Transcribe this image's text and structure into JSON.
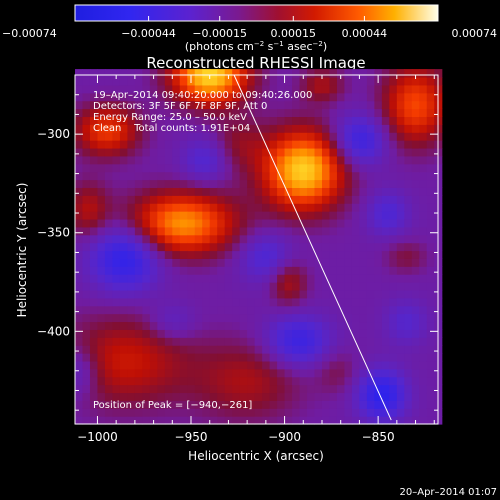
{
  "chart_data": {
    "type": "heatmap",
    "title": "Reconstructed RHESSI Image",
    "xlabel": "Heliocentric X (arcsec)",
    "ylabel": "Heliocentric Y (arcsec)",
    "xlim": [
      -1012,
      -818
    ],
    "ylim": [
      -447,
      -270
    ],
    "x_ticks": [
      -1000,
      -950,
      -900,
      -850
    ],
    "x_tick_labels": [
      "−1000",
      "−950",
      "−900",
      "−850"
    ],
    "y_ticks": [
      -300,
      -350,
      -400
    ],
    "y_tick_labels": [
      "−300",
      "−350",
      "−400"
    ],
    "colorbar": {
      "min": -0.00074,
      "max": 0.00074,
      "ticks": [
        -0.00074,
        -0.00044,
        -0.00015,
        0.00015,
        0.00044,
        0.00074
      ],
      "tick_labels": [
        "−0.00074",
        "−0.00044",
        "−0.00015",
        "0.00015",
        "0.00044",
        "0.00074"
      ],
      "units_main": "(photons cm",
      "units_exp1": "−2",
      "units_mid": " s",
      "units_exp2": "−1",
      "units_mid2": " asec",
      "units_exp3": "−2",
      "units_end": ")"
    },
    "annotations": [
      "19–Apr–2014 09:40:20.000 to 09:40:26.000",
      "Detectors: 3F 5F 6F 7F 8F 9F, Att 0",
      "Energy Range: 25.0 – 50.0 keV",
      "Clean    Total counts: 1.91E+04"
    ],
    "peak_label": "Position of Peak = [−940,−261]",
    "peak_position": [
      -940,
      -261
    ],
    "limb_line": [
      [
        -927,
        -262
      ],
      [
        -843,
        -445
      ]
    ],
    "blobs": [
      {
        "x": -940,
        "y": -270,
        "sx": 14,
        "sy": 10,
        "a": 1.0
      },
      {
        "x": -890,
        "y": -318,
        "sx": 15,
        "sy": 14,
        "a": 0.98
      },
      {
        "x": -955,
        "y": -345,
        "sx": 20,
        "sy": 11,
        "a": 0.8
      },
      {
        "x": -995,
        "y": -298,
        "sx": 12,
        "sy": 9,
        "a": 0.55
      },
      {
        "x": -830,
        "y": -285,
        "sx": 12,
        "sy": 14,
        "a": 0.6
      },
      {
        "x": -880,
        "y": -275,
        "sx": 8,
        "sy": 6,
        "a": 0.3
      },
      {
        "x": -1005,
        "y": -338,
        "sx": 8,
        "sy": 10,
        "a": 0.32
      },
      {
        "x": -925,
        "y": -305,
        "sx": 10,
        "sy": 10,
        "a": 0.22
      },
      {
        "x": -985,
        "y": -415,
        "sx": 24,
        "sy": 16,
        "a": 0.4
      },
      {
        "x": -920,
        "y": -425,
        "sx": 20,
        "sy": 14,
        "a": 0.3
      },
      {
        "x": -898,
        "y": -375,
        "sx": 7,
        "sy": 8,
        "a": 0.32
      },
      {
        "x": -835,
        "y": -362,
        "sx": 8,
        "sy": 6,
        "a": 0.18
      },
      {
        "x": -872,
        "y": -420,
        "sx": 8,
        "sy": 8,
        "a": 0.15
      },
      {
        "x": -985,
        "y": -362,
        "sx": 13,
        "sy": 12,
        "a": -0.55
      },
      {
        "x": -860,
        "y": -303,
        "sx": 10,
        "sy": 9,
        "a": -0.45
      },
      {
        "x": -893,
        "y": -405,
        "sx": 12,
        "sy": 9,
        "a": -0.45
      },
      {
        "x": -848,
        "y": -432,
        "sx": 9,
        "sy": 9,
        "a": -0.55
      },
      {
        "x": -942,
        "y": -313,
        "sx": 9,
        "sy": 8,
        "a": -0.28
      },
      {
        "x": -910,
        "y": -362,
        "sx": 10,
        "sy": 9,
        "a": -0.3
      },
      {
        "x": -1010,
        "y": -420,
        "sx": 8,
        "sy": 9,
        "a": -0.28
      },
      {
        "x": -845,
        "y": -340,
        "sx": 8,
        "sy": 8,
        "a": -0.28
      },
      {
        "x": -835,
        "y": -395,
        "sx": 8,
        "sy": 8,
        "a": -0.22
      },
      {
        "x": -960,
        "y": -395,
        "sx": 9,
        "sy": 7,
        "a": -0.2
      }
    ],
    "base_level": -0.18,
    "grid": false
  },
  "footer": {
    "timestamp": "20–Apr–2014 01:07"
  }
}
